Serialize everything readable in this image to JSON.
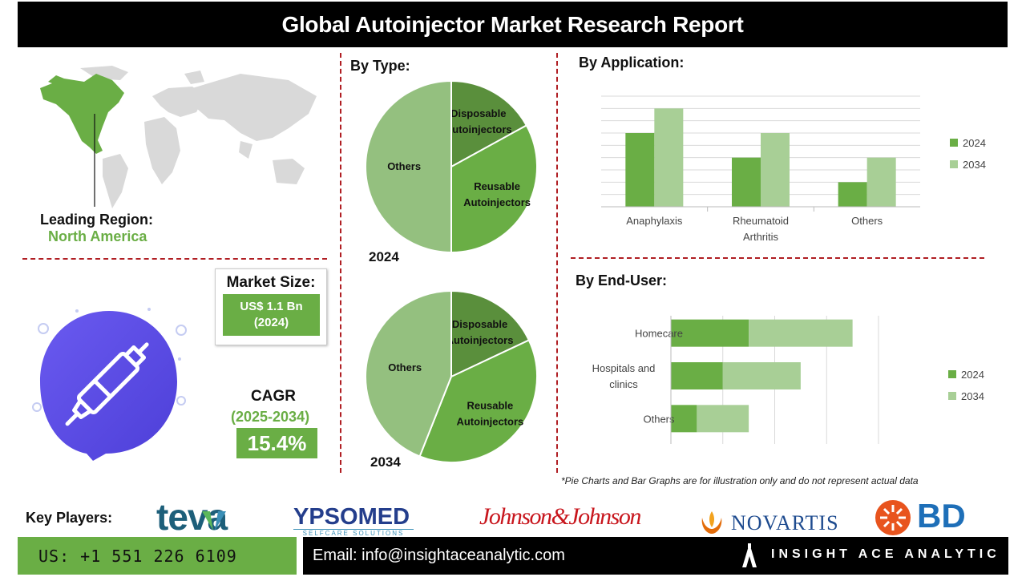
{
  "title": "Global Autoinjector Market Research Report",
  "region": {
    "label": "Leading Region:",
    "value": "North America"
  },
  "market_size": {
    "label": "Market Size:",
    "value_line1": "US$ 1.1 Bn",
    "value_line2": "(2024)"
  },
  "cagr": {
    "label": "CAGR",
    "period": "(2025-2034)",
    "value": "15.4%"
  },
  "sections": {
    "by_type": "By Type:",
    "by_application": "By Application:",
    "by_end_user": "By End-User:"
  },
  "note": "*Pie Charts and Bar Graphs are for illustration only and do not represent actual data",
  "key_players": {
    "label": "Key Players:",
    "logos": [
      "teva",
      "YPSOMED",
      "SELFCARE SOLUTIONS",
      "Johnson&Johnson",
      "NOVARTIS",
      "BD"
    ]
  },
  "footer": {
    "phone": "US: +1 551 226 6109",
    "email": "Email: info@insightaceanalytic.com",
    "brand": "INSIGHT ACE ANALYTIC"
  },
  "colors": {
    "dark_green": "#5a8f3c",
    "mid_green": "#6aae45",
    "light_green": "#94c07f",
    "bar_2034": "#a8cf96",
    "accent_red": "#b01e23"
  },
  "chart_data": [
    {
      "type": "pie",
      "label": "2024",
      "slices": [
        {
          "label": "Disposable Autoinjectors",
          "value": 17
        },
        {
          "label": "Reusable Autoinjectors",
          "value": 33
        },
        {
          "label": "Others",
          "value": 50
        }
      ]
    },
    {
      "type": "pie",
      "label": "2034",
      "slices": [
        {
          "label": "Disposable Autoinjectors",
          "value": 18
        },
        {
          "label": "Reusable Autoinjectors",
          "value": 38
        },
        {
          "label": "Others",
          "value": 44
        }
      ]
    },
    {
      "type": "bar",
      "orientation": "vertical",
      "categories": [
        "Anaphylaxis",
        "Rheumatoid Arthritis",
        "Others"
      ],
      "series": [
        {
          "name": "2024",
          "values": [
            3,
            2,
            1
          ]
        },
        {
          "name": "2034",
          "values": [
            4,
            3,
            2
          ]
        }
      ],
      "ylim": [
        0,
        4.5
      ],
      "grid": true,
      "legend": "right"
    },
    {
      "type": "bar",
      "orientation": "horizontal",
      "stacked": true,
      "categories": [
        "Homecare",
        "Hospitals and clinics",
        "Others"
      ],
      "series": [
        {
          "name": "2024",
          "values": [
            1.5,
            1.0,
            0.5
          ]
        },
        {
          "name": "2034",
          "values": [
            2.0,
            1.5,
            1.0
          ]
        }
      ],
      "xlim": [
        0,
        4.0
      ],
      "grid": true,
      "legend": "right"
    }
  ]
}
